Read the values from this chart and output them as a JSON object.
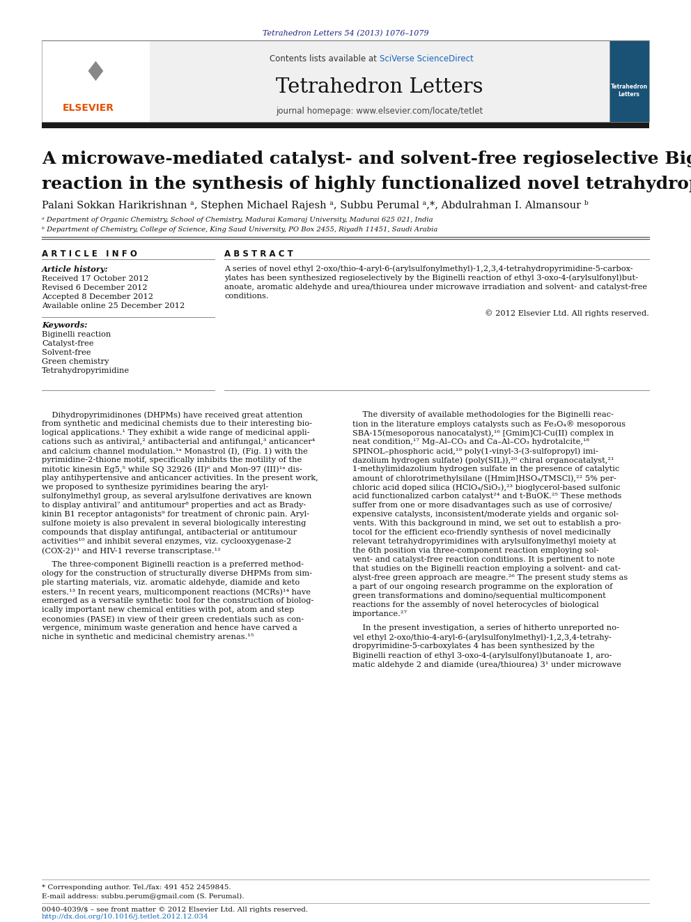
{
  "page_bg": "#ffffff",
  "top_journal_ref": "Tetrahedron Letters 54 (2013) 1076–1079",
  "top_journal_ref_color": "#1a237e",
  "header_bg": "#eeeeee",
  "header_text": "Contents lists available at ",
  "header_sciverse": "SciVerse ScienceDirect",
  "header_sciverse_color": "#1565c0",
  "journal_title": "Tetrahedron Letters",
  "journal_homepage": "journal homepage: www.elsevier.com/locate/tetlet",
  "thick_bar_color": "#1a1a1a",
  "article_title_line1": "A microwave-mediated catalyst- and solvent-free regioselective Biginelli",
  "article_title_line2": "reaction in the synthesis of highly functionalized novel tetrahydropyrimidines",
  "affil_a": "ᵃ Department of Organic Chemistry, School of Chemistry, Madurai Kamaraj University, Madurai 625 021, India",
  "affil_b": "ᵇ Department of Chemistry, College of Science, King Saud University, PO Box 2455, Riyadh 11451, Saudi Arabia",
  "article_info_title": "A R T I C L E   I N F O",
  "abstract_title": "A B S T R A C T",
  "article_history_label": "Article history:",
  "received": "Received 17 October 2012",
  "revised": "Revised 6 December 2012",
  "accepted": "Accepted 8 December 2012",
  "available": "Available online 25 December 2012",
  "keywords_label": "Keywords:",
  "keywords": [
    "Biginelli reaction",
    "Catalyst-free",
    "Solvent-free",
    "Green chemistry",
    "Tetrahydropyrimidine"
  ],
  "abstract_lines": [
    "A series of novel ethyl 2-oxo/thio-4-aryl-6-(arylsulfonylmethyl)-1,2,3,4-tetrahydropyrimidine-5-carbox-",
    "ylates has been synthesized regioselectively by the Biginelli reaction of ethyl 3-oxo-4-(arylsulfonyl)but-",
    "anoate, aromatic aldehyde and urea/thiourea under microwave irradiation and solvent- and catalyst-free",
    "conditions."
  ],
  "copyright": "© 2012 Elsevier Ltd. All rights reserved.",
  "body1_lines_p1": [
    "    Dihydropyrimidinones (DHPMs) have received great attention",
    "from synthetic and medicinal chemists due to their interesting bio-",
    "logical applications.¹ They exhibit a wide range of medicinal appli-",
    "cations such as antiviral,² antibacterial and antifungal,³ anticancer⁴",
    "and calcium channel modulation.¹ᵃ Monastrol (I), (Fig. 1) with the",
    "pyrimidine-2-thione motif, specifically inhibits the motility of the",
    "mitotic kinesin Eg5,⁵ while SQ 32926 (II)⁶ and Mon-97 (III)¹ᵃ dis-",
    "play antihypertensive and anticancer activities. In the present work,",
    "we proposed to synthesize pyrimidines bearing the aryl-",
    "sulfonylmethyl group, as several arylsulfone derivatives are known",
    "to display antiviral⁷ and antitumour⁸ properties and act as Brady-",
    "kinin B1 receptor antagonists⁹ for treatment of chronic pain. Aryl-",
    "sulfone moiety is also prevalent in several biologically interesting",
    "compounds that display antifungal, antibacterial or antitumour",
    "activities¹⁰ and inhibit several enzymes, viz. cyclooxygenase-2",
    "(COX-2)¹¹ and HIV-1 reverse transcriptase.¹²"
  ],
  "body1_lines_p2": [
    "    The three-component Biginelli reaction is a preferred method-",
    "ology for the construction of structurally diverse DHPMs from sim-",
    "ple starting materials, viz. aromatic aldehyde, diamide and keto",
    "esters.¹³ In recent years, multicomponent reactions (MCRs)¹⁴ have",
    "emerged as a versatile synthetic tool for the construction of biolog-",
    "ically important new chemical entities with pot, atom and step",
    "economies (PASE) in view of their green credentials such as con-",
    "vergence, minimum waste generation and hence have carved a",
    "niche in synthetic and medicinal chemistry arenas.¹⁵"
  ],
  "body2_lines_p1": [
    "    The diversity of available methodologies for the Biginelli reac-",
    "tion in the literature employs catalysts such as Fe₃O₄® mesoporous",
    "SBA-15(mesoporous nanocatalyst),¹⁶ [Gmim]Cl-Cu(II) complex in",
    "neat condition,¹⁷ Mg–Al–CO₃ and Ca–Al–CO₃ hydrotalcite,¹⁸",
    "SPINOL–phosphoric acid,¹⁹ poly(1-vinyl-3-(3-sulfopropyl) imi-",
    "dazolium hydrogen sulfate) (poly(SIL)),²⁰ chiral organocatalyst,²¹",
    "1-methylimidazolium hydrogen sulfate in the presence of catalytic",
    "amount of chlorotrimethylsilane ([Hmim]HSO₄/TMSCl),²² 5% per-",
    "chloric acid doped silica (HClO₄/SiO₂),²³ bioglycerol-based sulfonic",
    "acid functionalized carbon catalyst²⁴ and t-BuOK.²⁵ These methods",
    "suffer from one or more disadvantages such as use of corrosive/",
    "expensive catalysts, inconsistent/moderate yields and organic sol-",
    "vents. With this background in mind, we set out to establish a pro-",
    "tocol for the efficient eco-friendly synthesis of novel medicinally",
    "relevant tetrahydropyrimidines with arylsulfonylmethyl moiety at",
    "the 6th position via three-component reaction employing sol-",
    "vent- and catalyst-free reaction conditions. It is pertinent to note",
    "that studies on the Biginelli reaction employing a solvent- and cat-",
    "alyst-free green approach are meagre.²⁶ The present study stems as",
    "a part of our ongoing research programme on the exploration of",
    "green transformations and domino/sequential multicomponent",
    "reactions for the assembly of novel heterocycles of biological",
    "importance.²⁷"
  ],
  "body2_lines_p2": [
    "    In the present investigation, a series of hitherto unreported no-",
    "vel ethyl 2-oxo/thio-4-aryl-6-(arylsulfonylmethyl)-1,2,3,4-tetrahy-",
    "dropyrimidine-5-carboxylates 4 has been synthesized by the",
    "Biginelli reaction of ethyl 3-oxo-4-(arylsulfonyl)butanoate 1, aro-",
    "matic aldehyde 2 and diamide (urea/thiourea) 3¹ under microwave"
  ],
  "footer_note": "* Corresponding author. Tel./fax: 491 452 2459845.",
  "footer_email": "E-mail address: subbu.perum@gmail.com (S. Perumal).",
  "footer_issn": "0040-4039/$ – see front matter © 2012 Elsevier Ltd. All rights reserved.",
  "footer_doi": "http://dx.doi.org/10.1016/j.tetlet.2012.12.034"
}
